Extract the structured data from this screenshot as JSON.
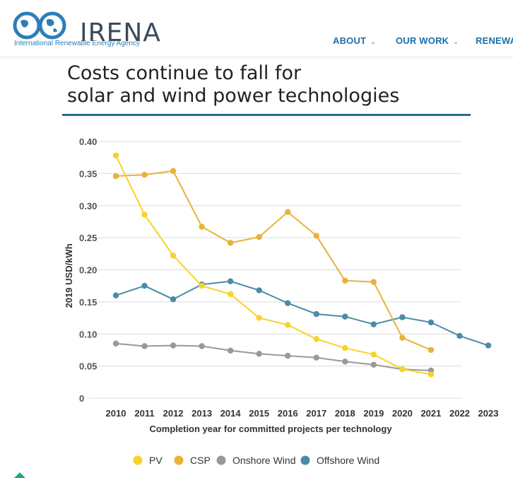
{
  "header": {
    "logo_text": "IRENA",
    "logo_subtitle": "International Renewable Energy Agency",
    "nav": [
      {
        "label": "ABOUT"
      },
      {
        "label": "OUR WORK"
      },
      {
        "label": "RENEWABLE"
      }
    ]
  },
  "article": {
    "headline_line1": "Costs continue to fall for",
    "headline_line2": "solar and wind power technologies"
  },
  "colors": {
    "pv": "#f6d32a",
    "csp": "#e8b23a",
    "onshore": "#999999",
    "offshore": "#4a8ba8",
    "grid": "#dcdcdc",
    "brand": "#2a6c8f"
  },
  "chart_data": {
    "type": "line",
    "xlabel": "Completion year for committed projects per technology",
    "ylabel": "2019 USD/kWh",
    "x": [
      2010,
      2011,
      2012,
      2013,
      2014,
      2015,
      2016,
      2017,
      2018,
      2019,
      2020,
      2021,
      2022,
      2023
    ],
    "y_ticks": [
      "0",
      "0.05",
      "0.10",
      "0.15",
      "0.20",
      "0.25",
      "0.30",
      "0.35",
      "0.40"
    ],
    "ylim": [
      0,
      0.4
    ],
    "grid": true,
    "legend_position": "bottom",
    "series": [
      {
        "name": "PV",
        "color_key": "pv",
        "points": [
          [
            2010,
            0.378
          ],
          [
            2011,
            0.286
          ],
          [
            2012,
            0.222
          ],
          [
            2013,
            0.175
          ],
          [
            2014,
            0.162
          ],
          [
            2015,
            0.125
          ],
          [
            2016,
            0.114
          ],
          [
            2017,
            0.092
          ],
          [
            2018,
            0.078
          ],
          [
            2019,
            0.068
          ],
          [
            2020,
            0.045
          ],
          [
            2021,
            0.037
          ]
        ]
      },
      {
        "name": "CSP",
        "color_key": "csp",
        "points": [
          [
            2010,
            0.346
          ],
          [
            2011,
            0.348
          ],
          [
            2012,
            0.354
          ],
          [
            2013,
            0.267
          ],
          [
            2014,
            0.242
          ],
          [
            2015,
            0.251
          ],
          [
            2016,
            0.29
          ],
          [
            2017,
            0.253
          ],
          [
            2018,
            0.183
          ],
          [
            2019,
            0.181
          ],
          [
            2020,
            0.094
          ],
          [
            2021,
            0.075
          ]
        ]
      },
      {
        "name": "Onshore Wind",
        "color_key": "onshore",
        "points": [
          [
            2010,
            0.085
          ],
          [
            2011,
            0.081
          ],
          [
            2012,
            0.082
          ],
          [
            2013,
            0.081
          ],
          [
            2014,
            0.074
          ],
          [
            2015,
            0.069
          ],
          [
            2016,
            0.066
          ],
          [
            2017,
            0.063
          ],
          [
            2018,
            0.057
          ],
          [
            2019,
            0.052
          ],
          [
            2020,
            0.045
          ],
          [
            2021,
            0.043
          ]
        ]
      },
      {
        "name": "Offshore Wind",
        "color_key": "offshore",
        "points": [
          [
            2010,
            0.16
          ],
          [
            2011,
            0.175
          ],
          [
            2012,
            0.154
          ],
          [
            2013,
            0.177
          ],
          [
            2014,
            0.182
          ],
          [
            2015,
            0.168
          ],
          [
            2016,
            0.148
          ],
          [
            2017,
            0.131
          ],
          [
            2018,
            0.127
          ],
          [
            2019,
            0.115
          ],
          [
            2020,
            0.126
          ],
          [
            2021,
            0.118
          ],
          [
            2022,
            0.097
          ],
          [
            2023,
            0.082
          ]
        ]
      }
    ]
  }
}
